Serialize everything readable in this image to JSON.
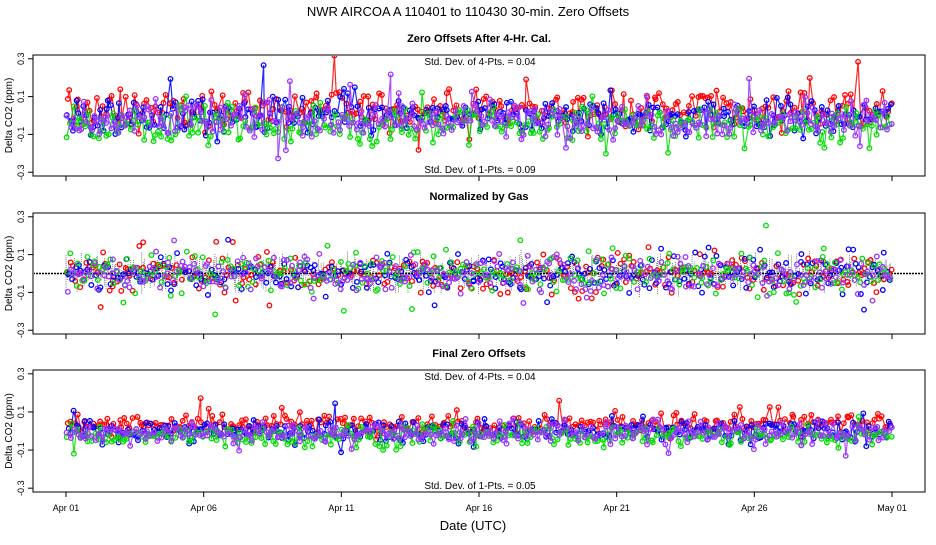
{
  "chart_data": {
    "type": "scatter",
    "title": "NWR   AIRCOA A   110401 to 110430   30-min. Zero Offsets",
    "xlabel": "Date (UTC)",
    "x_ticks": [
      "Apr 01",
      "Apr 06",
      "Apr 11",
      "Apr 16",
      "Apr 21",
      "Apr 26",
      "May 01"
    ],
    "x_range_days": [
      0,
      30
    ],
    "ylabel": "Delta CO2 (ppm)",
    "y_ticks": [
      "-0.3",
      "-0.1",
      "0.1",
      "0.3"
    ],
    "ylim": [
      -0.32,
      0.32
    ],
    "grid": false,
    "legend": "none",
    "series_colors": [
      "#ff0000",
      "#0000ff",
      "#00dd00",
      "#9933ff"
    ],
    "panels": [
      {
        "title": "Zero Offsets After 4-Hr. Cal.",
        "top_annotation": "Std. Dev. of 4-Pts. = 0.04",
        "bottom_annotation": "Std. Dev. of 1-Pts. = 0.09",
        "spread": 0.09,
        "series_offsets": [
          0.035,
          -0.005,
          -0.045,
          -0.02
        ],
        "has_center_trace": false
      },
      {
        "title": "Normalized by Gas",
        "top_annotation": "",
        "bottom_annotation": "",
        "spread": 0.09,
        "series_offsets": [
          0.0,
          0.0,
          0.0,
          0.0
        ],
        "has_center_trace": true
      },
      {
        "title": "Final Zero Offsets",
        "top_annotation": "Std. Dev. of 4-Pts. = 0.04",
        "bottom_annotation": "Std. Dev. of 1-Pts. = 0.05",
        "spread": 0.05,
        "series_offsets": [
          0.04,
          0.0,
          -0.025,
          -0.01
        ],
        "has_center_trace": false
      }
    ]
  }
}
